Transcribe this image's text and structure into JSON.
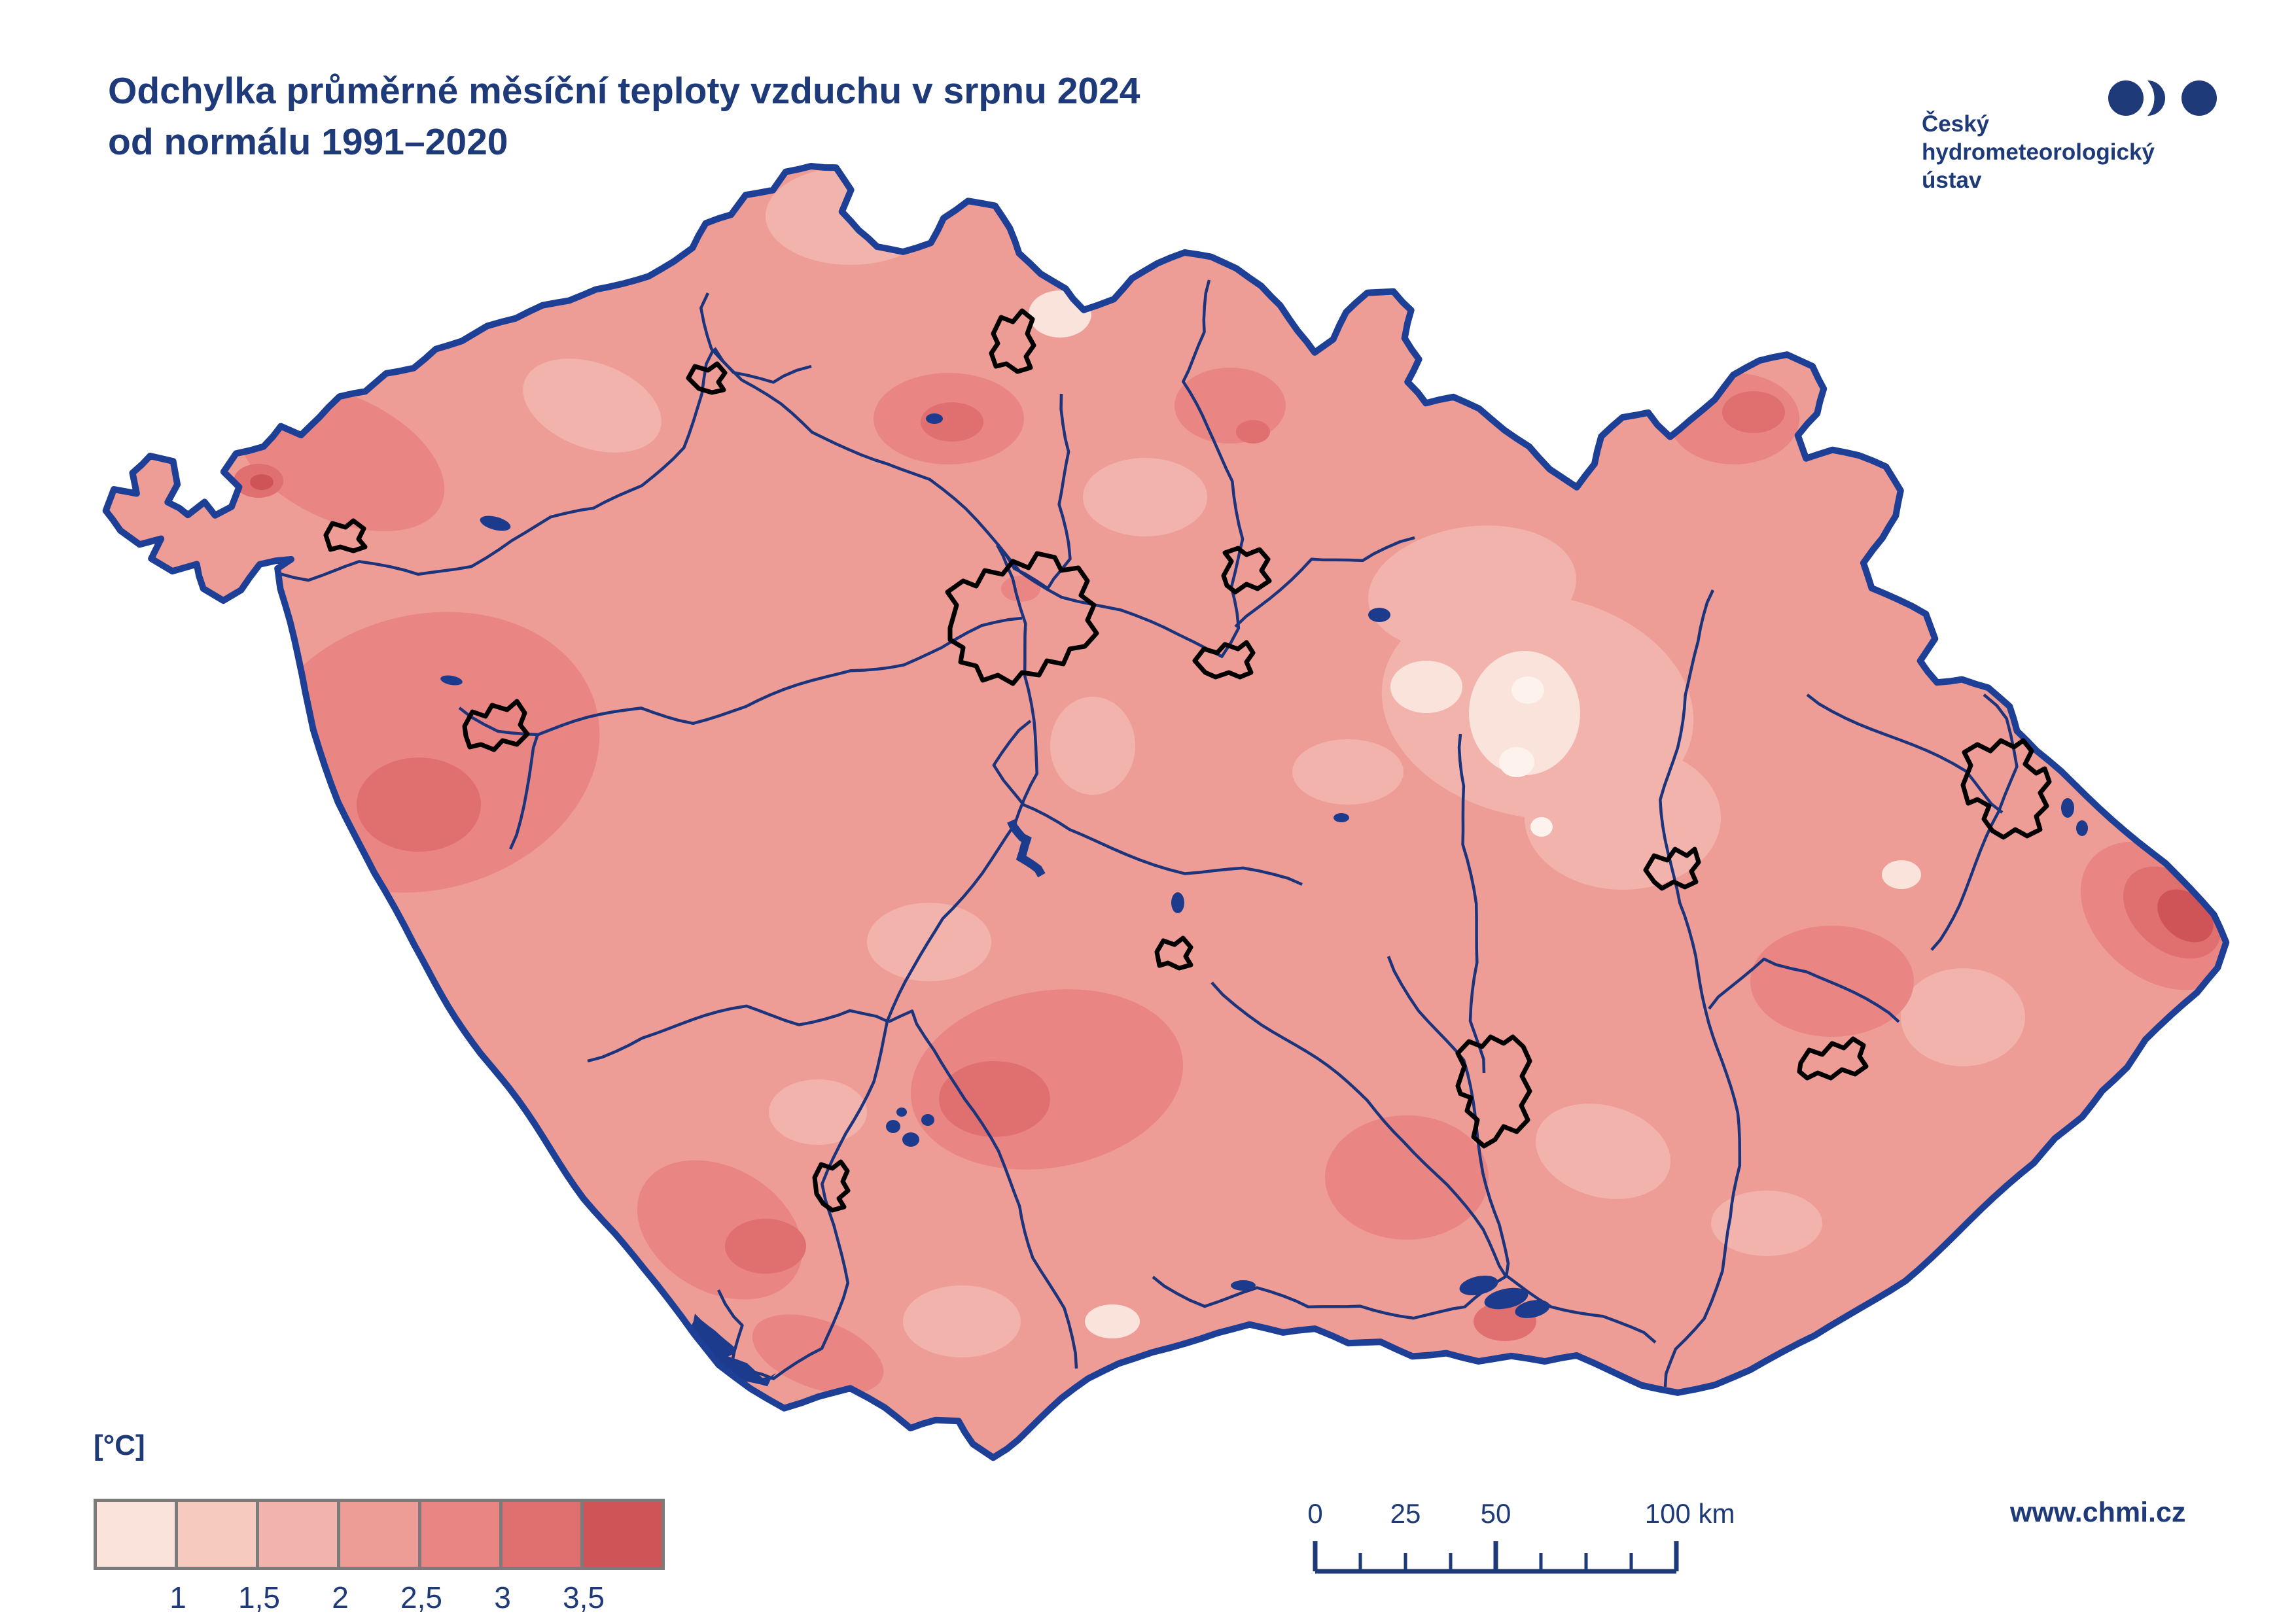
{
  "title": {
    "line1": "Odchylka průměrné měsíční teploty vzduchu v srpnu 2024",
    "line2": "od normálu 1991–2020"
  },
  "logo": {
    "line1": "Český",
    "line2": "hydrometeorologický",
    "line3": "ústav"
  },
  "legend": {
    "unit": "[°C]",
    "labels": [
      "1",
      "1,5",
      "2",
      "2,5",
      "3",
      "3,5"
    ],
    "colors": [
      "#fae3da",
      "#f6cabf",
      "#f2b3ac",
      "#ee9d96",
      "#e98683",
      "#e06f70",
      "#cf5458"
    ],
    "extra_light": "#fdf2ec",
    "frame_color": "#7b7b7b"
  },
  "scalebar": {
    "labels": [
      {
        "text": "0",
        "km": 0
      },
      {
        "text": "25",
        "km": 25
      },
      {
        "text": "50",
        "km": 50
      },
      {
        "text": "100 km",
        "km": 100
      }
    ],
    "km_total": 100,
    "tick_interval_km": 12.5,
    "major_ticks_km": [
      0,
      50,
      100
    ],
    "color": "#1e3a78"
  },
  "footer": {
    "url": "www.chmi.cz"
  },
  "map": {
    "border_color": "#1e3f96",
    "river_color": "#1c347c",
    "water_fill": "#1d3b8c",
    "city_outline_color": "#000000",
    "base_color": "#ee9d96"
  }
}
